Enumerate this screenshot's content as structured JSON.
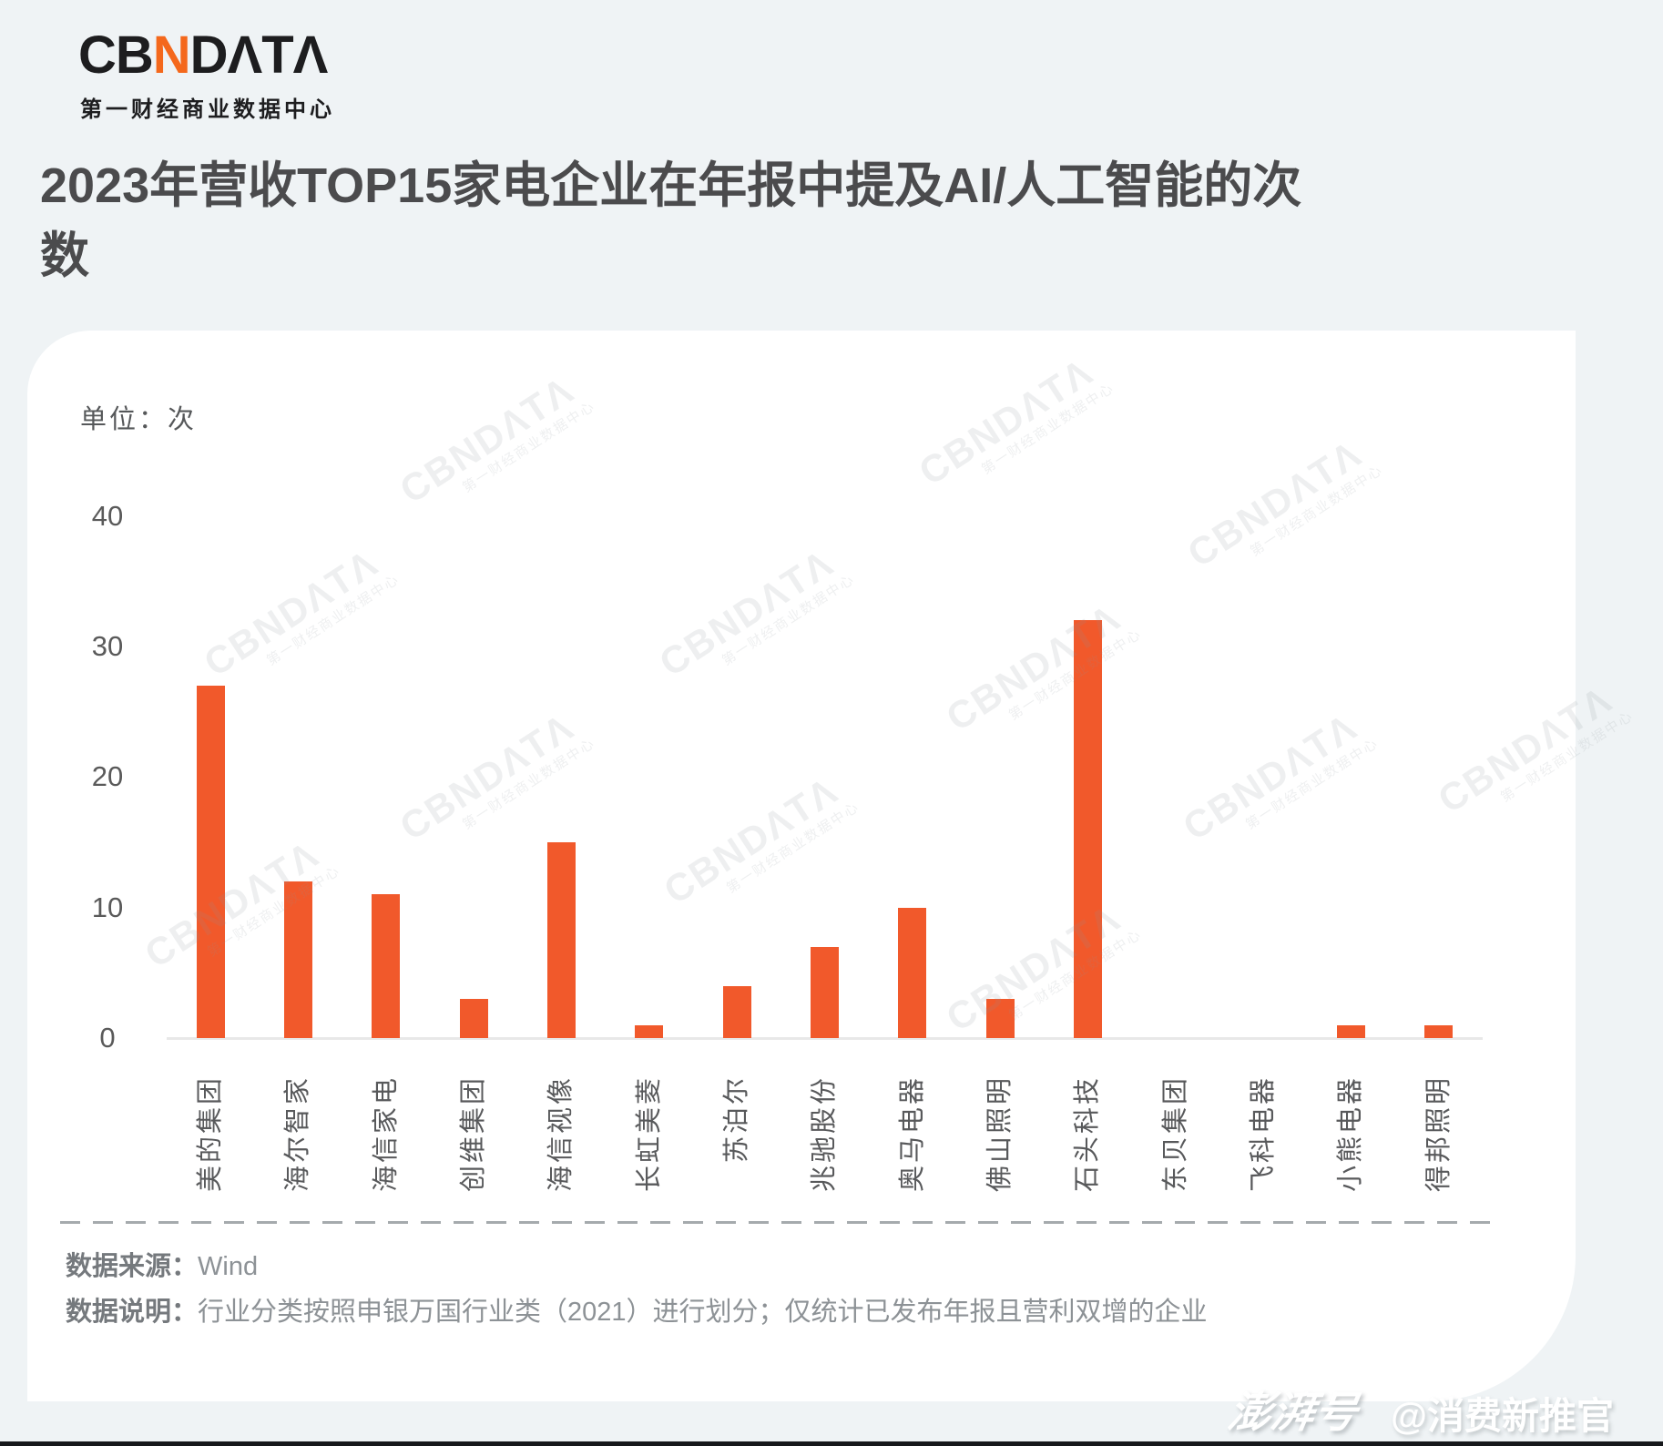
{
  "header": {
    "logo": {
      "part1": "CB",
      "accent": "N",
      "part2": "DΛTΛ",
      "tagline": "第一财经商业数据中心"
    },
    "title": "2023年营收TOP15家电企业在年报中提及AI/人工智能的次数"
  },
  "chart_card": {
    "unit_label": "单位：次"
  },
  "chart_data": {
    "type": "bar",
    "title": "2023年营收TOP15家电企业在年报中提及AI/人工智能的次数",
    "unit": "次",
    "categories": [
      "美的集团",
      "海尔智家",
      "海信家电",
      "创维集团",
      "海信视像",
      "长虹美菱",
      "苏泊尔",
      "兆驰股份",
      "奥马电器",
      "佛山照明",
      "石头科技",
      "东贝集团",
      "飞科电器",
      "小熊电器",
      "得邦照明"
    ],
    "values": [
      27,
      12,
      11,
      3,
      15,
      1,
      4,
      7,
      10,
      3,
      32,
      0,
      0,
      1,
      1
    ],
    "ylim": [
      0,
      40
    ],
    "yticks": [
      0,
      10,
      20,
      30,
      40
    ],
    "grid": false,
    "x_label_rotation": -90,
    "bar_color": "#F1592B"
  },
  "watermark": {
    "line1": "CBNDΛTΛ",
    "line2": "第一财经商业数据中心"
  },
  "footer": {
    "source_label": "数据来源：",
    "source_value": "Wind",
    "note_label": "数据说明：",
    "note_value": "行业分类按照申银万国行业类（2021）进行划分；仅统计已发布年报且营利双增的企业"
  },
  "branding": {
    "platform": "澎湃号",
    "account": "@消费新推官"
  }
}
